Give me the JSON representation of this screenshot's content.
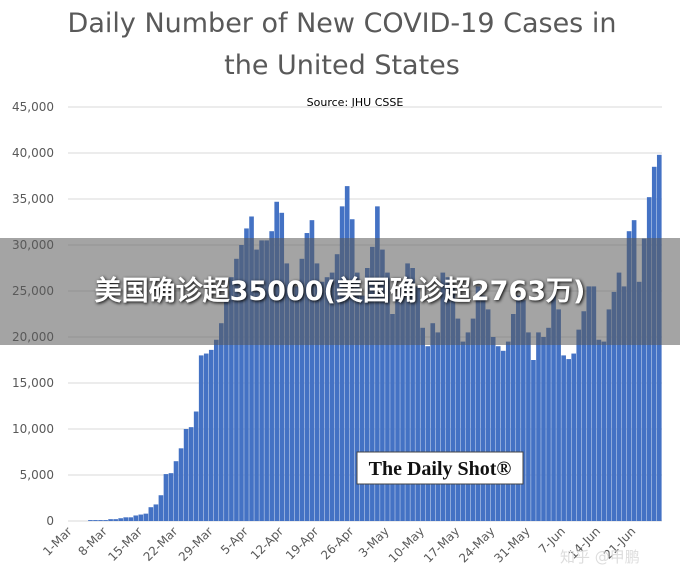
{
  "chart_data": {
    "type": "bar",
    "title": "Daily Number of New COVID-19 Cases in the United States",
    "subtitle": "Source: JHU CSSE",
    "logo": "The Daily Shot®",
    "overlay": "美国确诊超35000(美国确诊超2763万)",
    "watermark": "知乎 @甲鹏",
    "color": "#4472c4",
    "ylim": [
      0,
      45000
    ],
    "yticks": [
      0,
      {
        "value": 5000,
        "label": "5,000"
      },
      {
        "value": 10000,
        "label": "10,000"
      },
      {
        "value": 15000,
        "label": "15,000"
      },
      {
        "value": 20000,
        "label": "20,000"
      },
      {
        "value": 25000,
        "label": "25,000"
      },
      {
        "value": 30000,
        "label": "30,000"
      },
      {
        "value": 35000,
        "label": "35,000"
      },
      {
        "value": 40000,
        "label": "40,000"
      },
      {
        "value": 45000,
        "label": "45,000"
      }
    ],
    "categories": [
      "1-Mar",
      null,
      null,
      null,
      null,
      null,
      null,
      "8-Mar",
      null,
      null,
      null,
      null,
      null,
      null,
      "15-Mar",
      null,
      null,
      null,
      null,
      null,
      null,
      "22-Mar",
      null,
      null,
      null,
      null,
      null,
      null,
      "29-Mar",
      null,
      null,
      null,
      null,
      null,
      null,
      "5-Apr",
      null,
      null,
      null,
      null,
      null,
      null,
      "12-Apr",
      null,
      null,
      null,
      null,
      null,
      null,
      "19-Apr",
      null,
      null,
      null,
      null,
      null,
      null,
      "26-Apr",
      null,
      null,
      null,
      null,
      null,
      null,
      "3-May",
      null,
      null,
      null,
      null,
      null,
      null,
      "10-May",
      null,
      null,
      null,
      null,
      null,
      null,
      "17-May",
      null,
      null,
      null,
      null,
      null,
      null,
      "24-May",
      null,
      null,
      null,
      null,
      null,
      null,
      "31-May",
      null,
      null,
      null,
      null,
      null,
      null,
      "7-Jun",
      null,
      null,
      null,
      null,
      null,
      null,
      "14-Jun",
      null,
      null,
      null,
      null,
      null,
      null,
      "21-Jun",
      null,
      null,
      null,
      null,
      null
    ],
    "values": [
      0,
      0,
      0,
      0,
      100,
      100,
      100,
      100,
      200,
      200,
      300,
      400,
      400,
      600,
      700,
      800,
      1500,
      1800,
      2800,
      5100,
      5200,
      6500,
      7900,
      10000,
      10200,
      11900,
      18000,
      18200,
      18600,
      19700,
      21500,
      24000,
      26500,
      28500,
      30000,
      31800,
      33100,
      29500,
      30500,
      30500,
      31500,
      34700,
      33500,
      28000,
      26000,
      25500,
      28500,
      31300,
      32700,
      28000,
      26000,
      26500,
      27000,
      29000,
      34200,
      36400,
      32800,
      27000,
      24500,
      27500,
      29800,
      34200,
      29500,
      27000,
      22500,
      24500,
      25500,
      28000,
      27500,
      25500,
      21000,
      19000,
      21500,
      20500,
      27000,
      26500,
      25500,
      22000,
      19500,
      20500,
      22000,
      25500,
      24500,
      23000,
      20000,
      19000,
      18500,
      19500,
      22500,
      24500,
      24000,
      20500,
      17500,
      20500,
      20000,
      21000,
      24500,
      23000,
      18000,
      17600,
      18200,
      20800,
      22800,
      25500,
      25500,
      19700,
      19500,
      23000,
      24900,
      27000,
      25500,
      31500,
      32700,
      26000,
      30700,
      35200,
      38500,
      39800
    ]
  }
}
